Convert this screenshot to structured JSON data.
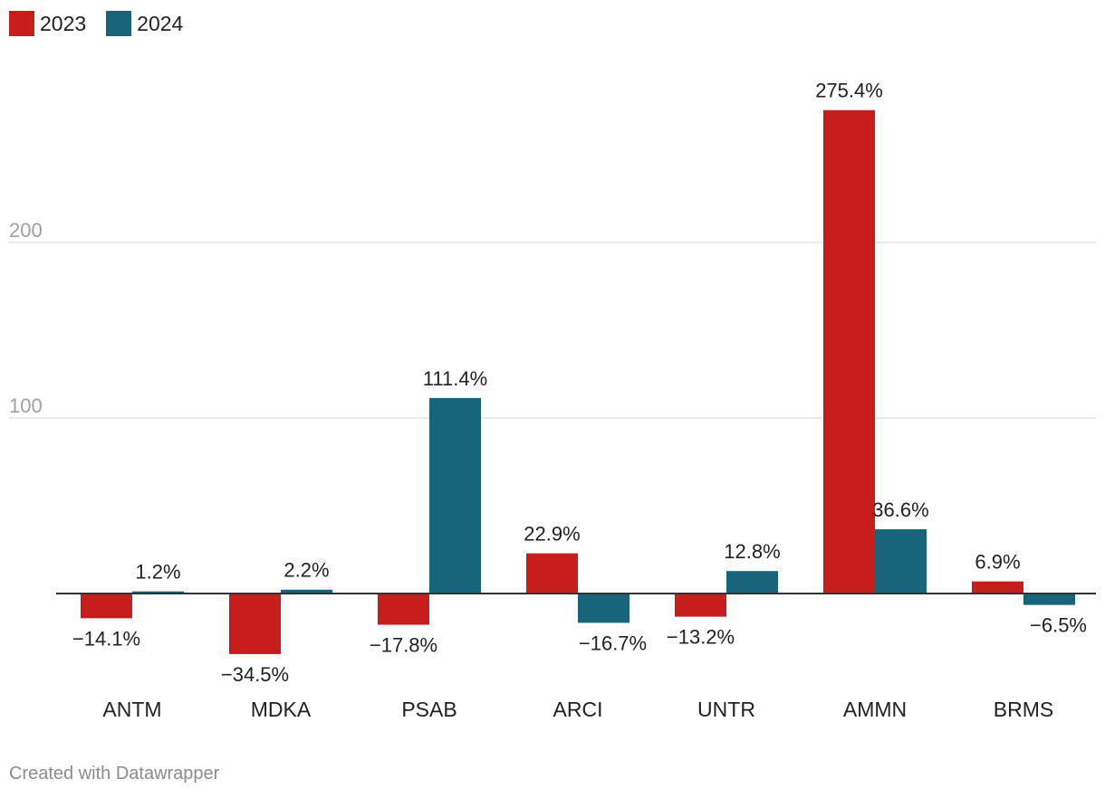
{
  "chart_data": {
    "type": "bar",
    "categories": [
      "ANTM",
      "MDKA",
      "PSAB",
      "ARCI",
      "UNTR",
      "AMMN",
      "BRMS"
    ],
    "series": [
      {
        "name": "2023",
        "color": "#c71e1d",
        "values": [
          -14.1,
          -34.5,
          -17.8,
          22.9,
          -13.2,
          275.4,
          6.9
        ],
        "labels": [
          "−14.1%",
          "−34.5%",
          "−17.8%",
          "22.9%",
          "−13.2%",
          "275.4%",
          "6.9%"
        ]
      },
      {
        "name": "2024",
        "color": "#18647b",
        "values": [
          1.2,
          2.2,
          111.4,
          -16.7,
          12.8,
          36.6,
          -6.5
        ],
        "labels": [
          "1.2%",
          "2.2%",
          "111.4%",
          "−16.7%",
          "12.8%",
          "36.6%",
          "−6.5%"
        ]
      }
    ],
    "y_ticks": [
      100,
      200
    ],
    "y_tick_labels": [
      "100",
      "200"
    ],
    "ylim": [
      -40,
      290
    ],
    "grid": true
  },
  "footer": "Created with Datawrapper"
}
